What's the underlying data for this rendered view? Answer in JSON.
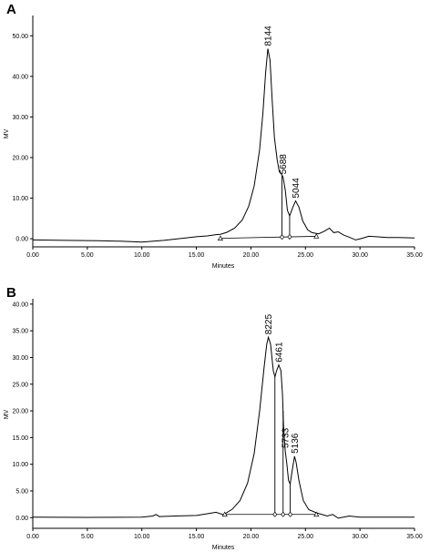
{
  "chart_data": [
    {
      "type": "line",
      "panel": "A",
      "xlabel": "Minutes",
      "ylabel": "MV",
      "xlim": [
        0,
        35
      ],
      "ylim": [
        -2,
        55
      ],
      "x_ticks": [
        0,
        5,
        10,
        15,
        20,
        25,
        30,
        35
      ],
      "x_tick_labels": [
        "0.00",
        "5.00",
        "10.00",
        "15.00",
        "20.00",
        "25.00",
        "30.00",
        "35.00"
      ],
      "y_ticks": [
        0,
        10,
        20,
        30,
        40,
        50
      ],
      "y_tick_labels": [
        "0.00",
        "10.00",
        "20.00",
        "30.00",
        "40.00",
        "50.00"
      ],
      "trace": [
        [
          0,
          -0.3
        ],
        [
          3,
          -0.4
        ],
        [
          6,
          -0.5
        ],
        [
          8,
          -0.6
        ],
        [
          10,
          -0.8
        ],
        [
          12,
          -0.4
        ],
        [
          14,
          0.2
        ],
        [
          15,
          0.5
        ],
        [
          16,
          0.7
        ],
        [
          16.8,
          1.0
        ],
        [
          17.2,
          1.1
        ],
        [
          17.8,
          1.6
        ],
        [
          18.5,
          2.6
        ],
        [
          19.2,
          4.6
        ],
        [
          19.8,
          8
        ],
        [
          20.3,
          13
        ],
        [
          20.8,
          22
        ],
        [
          21.1,
          31
        ],
        [
          21.35,
          41
        ],
        [
          21.55,
          46.8
        ],
        [
          21.75,
          44
        ],
        [
          21.95,
          34
        ],
        [
          22.15,
          25
        ],
        [
          22.4,
          19.5
        ],
        [
          22.6,
          16.5
        ],
        [
          22.75,
          16.1
        ],
        [
          22.95,
          15.2
        ],
        [
          23.15,
          12
        ],
        [
          23.35,
          7
        ],
        [
          23.55,
          5.6
        ],
        [
          23.85,
          7.8
        ],
        [
          24.1,
          9.3
        ],
        [
          24.4,
          7.8
        ],
        [
          24.75,
          4.4
        ],
        [
          25.2,
          2.2
        ],
        [
          25.6,
          1.5
        ],
        [
          26.2,
          1.2
        ],
        [
          26.7,
          1.8
        ],
        [
          27.2,
          2.6
        ],
        [
          27.6,
          1.5
        ],
        [
          28.0,
          1.7
        ],
        [
          28.5,
          0.9
        ],
        [
          29.0,
          0.4
        ],
        [
          29.6,
          -0.3
        ],
        [
          30.2,
          0.1
        ],
        [
          30.8,
          0.6
        ],
        [
          31.5,
          0.5
        ],
        [
          32.5,
          0.3
        ],
        [
          33.5,
          0.3
        ],
        [
          35,
          0.2
        ]
      ],
      "integration_baseline": [
        [
          17.2,
          0.1
        ],
        [
          26.0,
          0.6
        ]
      ],
      "drop_lines": [
        22.85,
        23.55
      ],
      "markers": [
        17.2,
        22.85,
        23.55,
        26.0
      ],
      "peaks": [
        {
          "label": "8144",
          "x": 21.55,
          "y": 46.8
        },
        {
          "label": "5688",
          "x": 22.95,
          "y": 15.2
        },
        {
          "label": "5044",
          "x": 24.1,
          "y": 9.3
        }
      ]
    },
    {
      "type": "line",
      "panel": "B",
      "xlabel": "Minutes",
      "ylabel": "MV",
      "xlim": [
        0,
        35
      ],
      "ylim": [
        -2,
        41
      ],
      "x_ticks": [
        0,
        5,
        10,
        15,
        20,
        25,
        30,
        35
      ],
      "x_tick_labels": [
        "0.00",
        "5.00",
        "10.00",
        "15.00",
        "20.00",
        "25.00",
        "30.00",
        "35.00"
      ],
      "y_ticks": [
        0,
        5,
        10,
        15,
        20,
        25,
        30,
        35,
        40
      ],
      "y_tick_labels": [
        "0.00",
        "5.00",
        "10.00",
        "15.00",
        "20.00",
        "25.00",
        "30.00",
        "35.00",
        "40.00"
      ],
      "trace": [
        [
          0,
          0.1
        ],
        [
          5,
          0.05
        ],
        [
          10,
          0.1
        ],
        [
          11,
          0.3
        ],
        [
          11.3,
          0.6
        ],
        [
          11.6,
          0.2
        ],
        [
          13,
          0.3
        ],
        [
          15,
          0.4
        ],
        [
          16.2,
          0.8
        ],
        [
          16.8,
          1.0
        ],
        [
          17.4,
          0.6
        ],
        [
          17.6,
          0.7
        ],
        [
          18.3,
          1.6
        ],
        [
          19,
          3.2
        ],
        [
          19.7,
          6.5
        ],
        [
          20.3,
          12
        ],
        [
          20.8,
          20
        ],
        [
          21.2,
          28
        ],
        [
          21.45,
          32.5
        ],
        [
          21.6,
          33.8
        ],
        [
          21.8,
          32.5
        ],
        [
          22.05,
          27.5
        ],
        [
          22.2,
          26.4
        ],
        [
          22.35,
          27.5
        ],
        [
          22.55,
          28.6
        ],
        [
          22.75,
          27.5
        ],
        [
          22.9,
          23
        ],
        [
          23.0,
          17
        ],
        [
          23.15,
          12.5
        ],
        [
          23.3,
          10
        ],
        [
          23.45,
          7
        ],
        [
          23.6,
          6.3
        ],
        [
          23.8,
          9
        ],
        [
          24.0,
          11.5
        ],
        [
          24.15,
          10.3
        ],
        [
          24.4,
          7
        ],
        [
          24.8,
          3.2
        ],
        [
          25.3,
          1.5
        ],
        [
          26,
          0.9
        ],
        [
          27,
          0.3
        ],
        [
          27.5,
          0.6
        ],
        [
          28,
          -0.1
        ],
        [
          29,
          0.3
        ],
        [
          30,
          0.1
        ],
        [
          35,
          0.1
        ]
      ],
      "integration_baseline": [
        [
          17.6,
          0.6
        ],
        [
          26.0,
          0.6
        ]
      ],
      "drop_lines": [
        22.2,
        22.95,
        23.6
      ],
      "markers": [
        17.6,
        22.2,
        22.95,
        23.6,
        26.0
      ],
      "peaks": [
        {
          "label": "8225",
          "x": 21.6,
          "y": 33.8
        },
        {
          "label": "6461",
          "x": 22.55,
          "y": 28.6
        },
        {
          "label": "5733",
          "x": 23.15,
          "y": 12.5
        },
        {
          "label": "5136",
          "x": 24.0,
          "y": 11.5
        }
      ]
    }
  ]
}
